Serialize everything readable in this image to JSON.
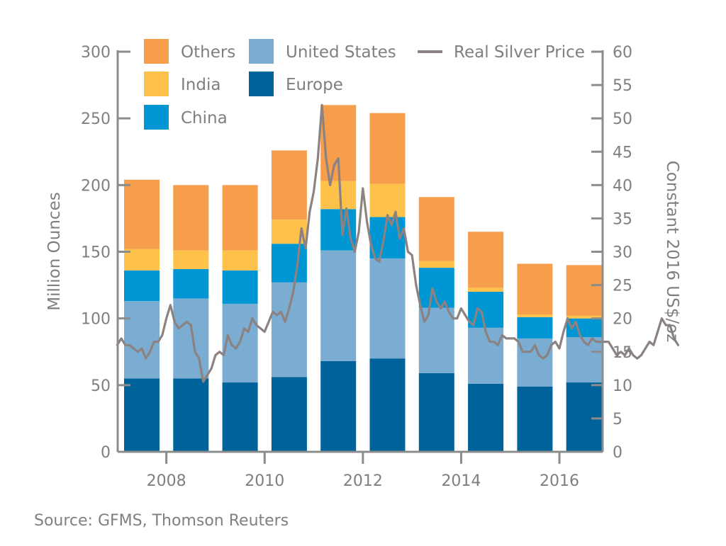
{
  "chart_data": {
    "type": "bar",
    "stacked": true,
    "categories": [
      "2007",
      "2008",
      "2009",
      "2010",
      "2011",
      "2012",
      "2013",
      "2014",
      "2015",
      "2016"
    ],
    "x_tick_labels": [
      "2008",
      "2010",
      "2012",
      "2014",
      "2016"
    ],
    "series": [
      {
        "name": "Europe",
        "color": "#00629b",
        "values": [
          55,
          55,
          52,
          56,
          68,
          70,
          59,
          51,
          49,
          52
        ]
      },
      {
        "name": "United States",
        "color": "#7aadd1",
        "values": [
          58,
          60,
          59,
          71,
          83,
          75,
          49,
          42,
          36,
          34
        ]
      },
      {
        "name": "China",
        "color": "#0095d3",
        "values": [
          23,
          22,
          25,
          29,
          31,
          31,
          30,
          27,
          16,
          14
        ]
      },
      {
        "name": "India",
        "color": "#fec24b",
        "values": [
          16,
          14,
          15,
          18,
          21,
          25,
          5,
          3,
          2,
          2
        ]
      },
      {
        "name": "Others",
        "color": "#f79e4c",
        "values": [
          52,
          49,
          49,
          52,
          57,
          53,
          48,
          42,
          38,
          38
        ]
      }
    ],
    "line_series": {
      "name": "Real Silver Price",
      "color": "#8c8281",
      "axis": "right",
      "x_start": 2007.0,
      "x_step": 0.08333,
      "values": [
        16,
        17,
        16,
        16,
        15.5,
        15,
        15.5,
        14,
        15,
        16.5,
        16.5,
        17.5,
        20,
        22,
        19.5,
        18.5,
        19,
        19.5,
        19,
        15,
        14,
        10.5,
        11.5,
        12.5,
        14.5,
        15,
        14.5,
        17.5,
        16,
        15.5,
        16.5,
        18.5,
        18,
        20,
        19,
        18.5,
        18,
        19.5,
        21,
        20.5,
        21,
        19.5,
        21.5,
        24,
        28,
        33.5,
        30.5,
        36,
        39,
        44,
        52,
        44,
        40,
        43,
        44,
        32.5,
        36.5,
        32,
        30,
        33,
        39.5,
        34.5,
        31,
        29,
        28.5,
        31.5,
        35.5,
        34,
        36,
        32,
        33.5,
        30,
        29.5,
        25,
        22,
        19.5,
        20.5,
        24.5,
        22.5,
        21.5,
        22.5,
        21,
        20,
        20,
        21.5,
        20.5,
        19.5,
        19,
        21.5,
        21,
        18,
        16.5,
        16.5,
        16,
        17.5,
        17,
        17,
        17,
        16.5,
        15,
        15,
        15,
        16,
        14.5,
        14,
        14.5,
        16,
        16.5,
        15.5,
        18,
        20,
        18.5,
        19.5,
        17.5,
        16.5,
        16,
        17,
        16.5,
        16.5,
        16.5,
        16.5,
        15.5,
        14.5,
        15,
        14.5,
        15.5,
        14.5,
        14,
        14.5,
        15.5,
        16.5,
        16,
        18,
        20,
        19,
        19,
        17,
        16
      ]
    },
    "left_axis": {
      "label": "Million Ounces",
      "ylim": [
        0,
        300
      ],
      "ticks": [
        "0",
        "50",
        "100",
        "150",
        "200",
        "250",
        "300"
      ]
    },
    "right_axis": {
      "label": "Constant 2016 US$/oz",
      "ylim": [
        0,
        60
      ],
      "ticks": [
        "0",
        "5",
        "10",
        "15",
        "20",
        "25",
        "30",
        "35",
        "40",
        "45",
        "50",
        "55",
        "60"
      ]
    },
    "grid": false,
    "legend_position": "top",
    "source": "Source: GFMS, Thomson Reuters"
  }
}
